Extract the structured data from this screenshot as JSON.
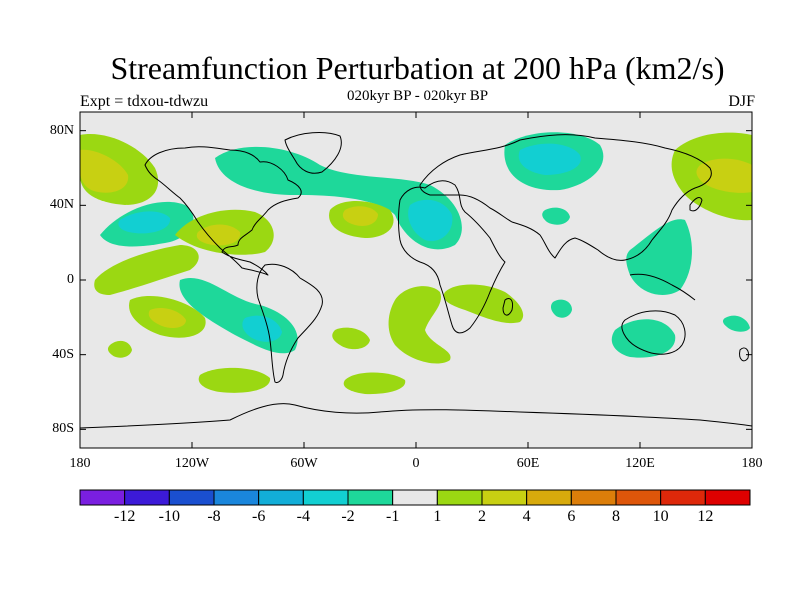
{
  "header": {
    "title": "Streamfunction Perturbation at 200 hPa (km2/s)",
    "subtitle": "020kyr BP - 020kyr BP",
    "experiment": "Expt = tdxou-tdwzu",
    "season": "DJF"
  },
  "map": {
    "projection": "cylindrical-equidistant",
    "background_color": "#e8e8e8",
    "lon_range": [
      -180,
      180
    ],
    "lat_range": [
      -90,
      90
    ],
    "lat_ticks": [
      {
        "value": 80,
        "label": "80N"
      },
      {
        "value": 40,
        "label": "40N"
      },
      {
        "value": 0,
        "label": "0"
      },
      {
        "value": -40,
        "label": "40S"
      },
      {
        "value": -80,
        "label": "80S"
      }
    ],
    "lon_ticks": [
      {
        "value": -180,
        "label": "180"
      },
      {
        "value": -120,
        "label": "120W"
      },
      {
        "value": -60,
        "label": "60W"
      },
      {
        "value": 0,
        "label": "0"
      },
      {
        "value": 60,
        "label": "60E"
      },
      {
        "value": 120,
        "label": "120E"
      },
      {
        "value": 180,
        "label": "180"
      }
    ]
  },
  "colorbar": {
    "colors": [
      "#7a1fe0",
      "#3c1ad8",
      "#1a4fd0",
      "#1a86dc",
      "#12aed8",
      "#12cfd2",
      "#1ed89a",
      "#e8e8e8",
      "#9bd812",
      "#c8d012",
      "#d8aa0c",
      "#dc7e0a",
      "#de560a",
      "#de280a",
      "#de0000"
    ],
    "labels": [
      "-12",
      "-10",
      "-8",
      "-6",
      "-4",
      "-2",
      "-1",
      "1",
      "2",
      "4",
      "6",
      "8",
      "10",
      "12"
    ]
  },
  "fields": {
    "positive_color": "#9bd812",
    "positive_strong_color": "#c8d012",
    "negative_color": "#1ed89a",
    "negative_strong_color": "#12cfd2"
  }
}
